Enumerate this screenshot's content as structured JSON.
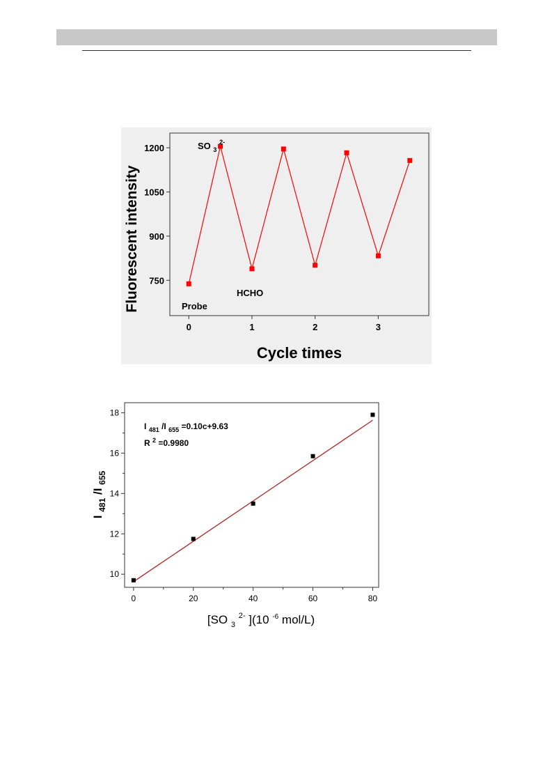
{
  "colors": {
    "series1": "#ff0000",
    "points2": "#000000",
    "fit_line": "#b03030",
    "panel1_bg": "#efefef",
    "header_bar": "#c8c8c8"
  },
  "chart_data": [
    {
      "type": "line",
      "xlabel": "Cycle times",
      "ylabel": "Fluorescent intensity",
      "xlim": [
        -0.3,
        3.8
      ],
      "ylim": [
        630,
        1250
      ],
      "xticks": [
        0,
        1,
        2,
        3
      ],
      "yticks": [
        750,
        900,
        1050,
        1200
      ],
      "grid": false,
      "series": [
        {
          "x": [
            0,
            0.5,
            1,
            1.5,
            2,
            2.5,
            3,
            3.5
          ],
          "y": [
            738,
            1205,
            789,
            1196,
            801,
            1183,
            833,
            1157
          ]
        }
      ],
      "annotations": {
        "probe": "Probe",
        "hcho": "HCHO",
        "so3": "SO",
        "so3_sub": "3",
        "so3_sup": "2-"
      }
    },
    {
      "type": "scatter",
      "xlim": [
        -3,
        82
      ],
      "ylim": [
        9.35,
        18.5
      ],
      "xticks": [
        0,
        20,
        40,
        60,
        80
      ],
      "yticks": [
        10,
        12,
        14,
        16,
        18
      ],
      "grid": false,
      "x": [
        0,
        20,
        40,
        60,
        80
      ],
      "y": [
        9.7,
        11.75,
        13.5,
        15.85,
        17.9
      ],
      "fit": {
        "slope": 0.1,
        "intercept": 9.63
      },
      "ylabel": {
        "main1": "I",
        "sub1": "481",
        "main2": "/I",
        "sub2": "655"
      },
      "xlabel": {
        "open": "[SO",
        "sub": "3",
        "sup": "2-",
        "mid": "](10",
        "exp": "-6",
        "end": "mol/L)"
      },
      "equation": {
        "part1": "I",
        "sub1": "481",
        "part2": "/I",
        "sub2": "655",
        "part3": "=0.10c+9.63"
      },
      "r2": {
        "part1": "R",
        "sup": "2",
        "part2": "=0.9980"
      }
    }
  ]
}
